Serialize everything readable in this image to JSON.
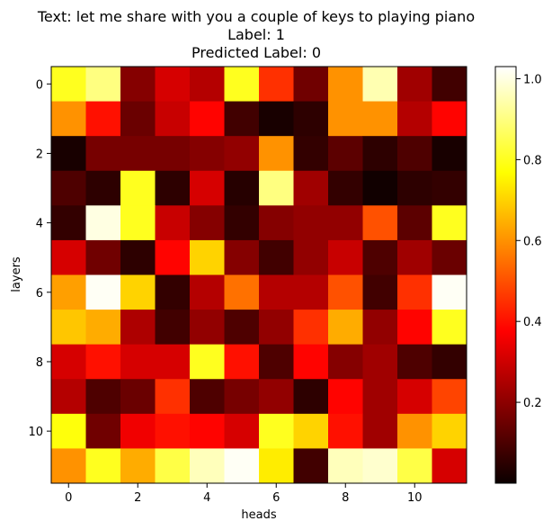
{
  "chart_data": {
    "type": "heatmap",
    "title_lines": [
      "Text: let me share with you a couple of keys to playing piano",
      "Label: 1",
      "Predicted Label: 0"
    ],
    "xlabel": "heads",
    "ylabel": "layers",
    "x_ticks": [
      0,
      2,
      4,
      6,
      8,
      10
    ],
    "y_ticks": [
      0,
      2,
      4,
      6,
      8,
      10
    ],
    "colormap": "hot",
    "color_range": [
      0.0,
      1.03
    ],
    "colorbar_ticks": [
      0.2,
      0.4,
      0.6,
      0.8,
      1.0
    ],
    "rows": 12,
    "cols": 12,
    "values": [
      [
        0.8,
        0.9,
        0.18,
        0.3,
        0.25,
        0.8,
        0.45,
        0.15,
        0.6,
        0.95,
        0.22,
        0.08
      ],
      [
        0.6,
        0.4,
        0.14,
        0.28,
        0.38,
        0.08,
        0.02,
        0.05,
        0.6,
        0.6,
        0.25,
        0.38
      ],
      [
        0.02,
        0.16,
        0.16,
        0.16,
        0.18,
        0.2,
        0.6,
        0.06,
        0.12,
        0.05,
        0.1,
        0.02
      ],
      [
        0.1,
        0.05,
        0.8,
        0.05,
        0.3,
        0.04,
        0.9,
        0.22,
        0.06,
        0.01,
        0.05,
        0.06
      ],
      [
        0.06,
        1.0,
        0.8,
        0.28,
        0.18,
        0.06,
        0.18,
        0.2,
        0.2,
        0.5,
        0.12,
        0.8
      ],
      [
        0.3,
        0.15,
        0.05,
        0.38,
        0.7,
        0.18,
        0.08,
        0.2,
        0.28,
        0.1,
        0.22,
        0.14
      ],
      [
        0.62,
        1.02,
        0.7,
        0.06,
        0.25,
        0.55,
        0.25,
        0.25,
        0.5,
        0.08,
        0.45,
        1.02
      ],
      [
        0.68,
        0.64,
        0.24,
        0.08,
        0.2,
        0.1,
        0.2,
        0.45,
        0.64,
        0.2,
        0.38,
        0.8
      ],
      [
        0.3,
        0.4,
        0.3,
        0.3,
        0.8,
        0.4,
        0.1,
        0.38,
        0.18,
        0.22,
        0.1,
        0.06
      ],
      [
        0.25,
        0.1,
        0.14,
        0.45,
        0.1,
        0.16,
        0.2,
        0.05,
        0.38,
        0.22,
        0.3,
        0.48
      ],
      [
        0.78,
        0.15,
        0.34,
        0.4,
        0.38,
        0.3,
        0.8,
        0.7,
        0.4,
        0.22,
        0.6,
        0.7
      ],
      [
        0.6,
        0.8,
        0.64,
        0.84,
        0.96,
        1.02,
        0.74,
        0.08,
        0.96,
        0.98,
        0.84,
        0.3
      ]
    ]
  }
}
